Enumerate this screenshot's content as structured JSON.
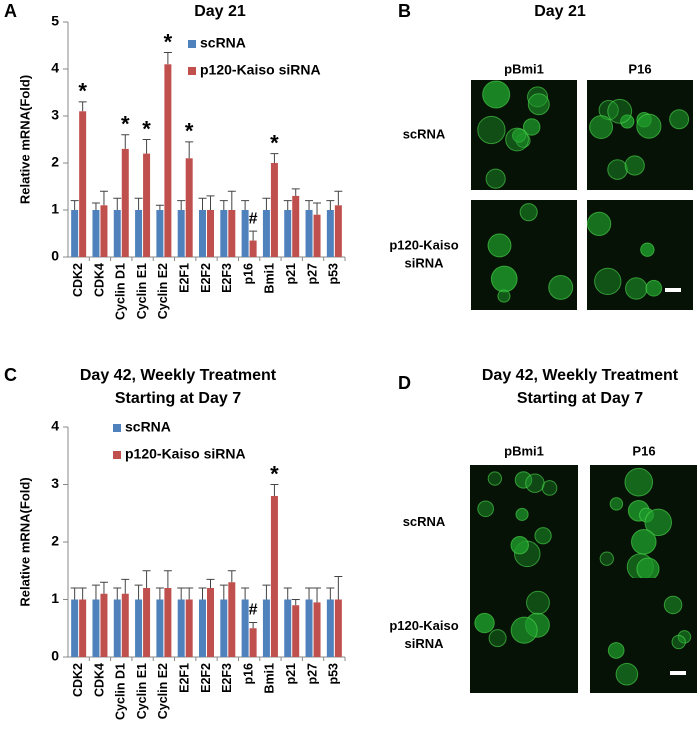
{
  "chart_data": [
    {
      "type": "bar",
      "panel": "A",
      "title": [
        "Day 21"
      ],
      "ylabel": "Relative mRNA(Fold)",
      "categories": [
        "CDK2",
        "CDK4",
        "Cyclin D1",
        "Cyclin E1",
        "Cyclin E2",
        "E2F1",
        "E2F2",
        "E2F3",
        "p16",
        "Bmi1",
        "p21",
        "p27",
        "p53"
      ],
      "series": [
        {
          "name": "scRNA",
          "color": "#4f81bd",
          "values": [
            1,
            1,
            1,
            1,
            1,
            1,
            1,
            1,
            1,
            1,
            1,
            1,
            1
          ],
          "errors": [
            0.2,
            0.15,
            0.25,
            0.25,
            0.1,
            0.2,
            0.25,
            0.2,
            0.2,
            0.25,
            0.2,
            0.2,
            0.2
          ]
        },
        {
          "name": "p120-Kaiso siRNA",
          "color": "#c0504d",
          "values": [
            3.1,
            1.1,
            2.3,
            2.2,
            4.1,
            2.1,
            1.0,
            1.0,
            0.35,
            2.0,
            1.3,
            0.9,
            1.1
          ],
          "errors": [
            0.2,
            0.3,
            0.3,
            0.3,
            0.25,
            0.35,
            0.3,
            0.4,
            0.2,
            0.2,
            0.15,
            0.25,
            0.3
          ],
          "flags": [
            "*",
            null,
            "*",
            "*",
            "*",
            "*",
            null,
            null,
            "#",
            "*",
            null,
            null,
            null
          ]
        }
      ],
      "ylim": [
        0,
        5
      ],
      "yticks": [
        0,
        1,
        2,
        3,
        4,
        5
      ],
      "legend": "upper center"
    },
    {
      "type": "bar",
      "panel": "C",
      "title": [
        "Day 42, Weekly Treatment",
        "Starting at Day 7"
      ],
      "ylabel": "Relative mRNA(Fold)",
      "categories": [
        "CDK2",
        "CDK4",
        "Cyclin D1",
        "Cyclin E1",
        "Cyclin E2",
        "E2F1",
        "E2F2",
        "E2F3",
        "p16",
        "Bmi1",
        "p21",
        "p27",
        "p53"
      ],
      "series": [
        {
          "name": "scRNA",
          "color": "#4f81bd",
          "values": [
            1,
            1,
            1,
            1,
            1,
            1,
            1,
            1,
            1,
            1,
            1,
            1,
            1
          ],
          "errors": [
            0.2,
            0.25,
            0.2,
            0.25,
            0.2,
            0.2,
            0.2,
            0.25,
            0.2,
            0.25,
            0.2,
            0.2,
            0.2
          ]
        },
        {
          "name": "p120-Kaiso siRNA",
          "color": "#c0504d",
          "values": [
            1.0,
            1.1,
            1.1,
            1.2,
            1.2,
            1.0,
            1.2,
            1.3,
            0.5,
            2.8,
            0.9,
            0.95,
            1.0
          ],
          "errors": [
            0.2,
            0.2,
            0.25,
            0.3,
            0.3,
            0.2,
            0.15,
            0.2,
            0.1,
            0.2,
            0.1,
            0.25,
            0.4
          ],
          "flags": [
            null,
            null,
            null,
            null,
            null,
            null,
            null,
            null,
            "#",
            "*",
            null,
            null,
            null
          ]
        }
      ],
      "ylim": [
        0,
        4
      ],
      "yticks": [
        0,
        1,
        2,
        3,
        4
      ],
      "legend": "upper left"
    }
  ],
  "image_panels": [
    {
      "panel": "B",
      "title": [
        "Day 21"
      ],
      "columns": [
        "pBmi1",
        "P16"
      ],
      "rows": [
        [
          "scRNA"
        ],
        [
          "p120-Kaiso",
          "siRNA"
        ]
      ]
    },
    {
      "panel": "D",
      "title": [
        "Day 42, Weekly Treatment",
        "Starting at Day 7"
      ],
      "columns": [
        "pBmi1",
        "P16"
      ],
      "rows": [
        [
          "scRNA"
        ],
        [
          "p120-Kaiso",
          "siRNA"
        ]
      ]
    }
  ]
}
